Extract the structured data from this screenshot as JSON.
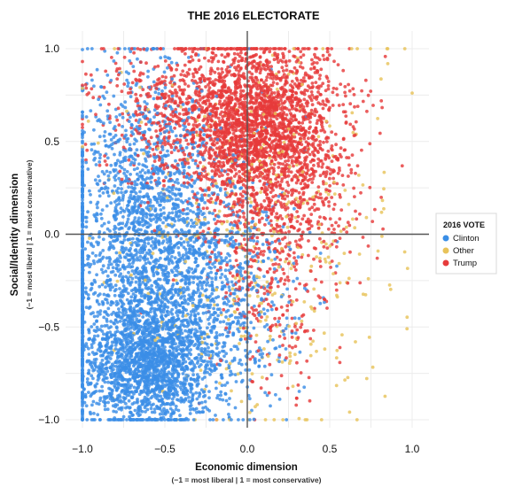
{
  "chart_data": {
    "type": "scatter",
    "title": "THE 2016 ELECTORATE",
    "xlabel": "Economic dimension",
    "xlabel_note": "(−1 = most liberal | 1 = most conservative)",
    "ylabel": "Social/Identity dimension",
    "ylabel_note": "(−1 = most liberal | 1 = most conservative)",
    "xlim": [
      -1.0,
      1.0
    ],
    "ylim": [
      -1.0,
      1.0
    ],
    "x_ticks": [
      -1.0,
      -0.5,
      0.0,
      0.5,
      1.0
    ],
    "x_tick_labels": [
      "−1.0",
      "−0.5",
      "0.0",
      "0.5",
      "1.0"
    ],
    "y_ticks": [
      -1.0,
      -0.5,
      0.0,
      0.5,
      1.0
    ],
    "y_tick_labels": [
      "−1.0",
      "−0.5",
      "0.0",
      "0.5",
      "1.0"
    ],
    "grid": true,
    "legend": {
      "title": "2016 VOTE",
      "placement": "right",
      "entries": [
        "Clinton",
        "Other",
        "Trump"
      ]
    },
    "colors": {
      "Clinton": "#3a8ee6",
      "Other": "#e8c35a",
      "Trump": "#e63b3b"
    },
    "series": [
      {
        "name": "Clinton",
        "clusters": [
          {
            "n": 1700,
            "cx": -0.62,
            "cy": -0.7,
            "sx": 0.2,
            "sy": 0.17
          },
          {
            "n": 1600,
            "cx": -0.58,
            "cy": -0.22,
            "sx": 0.27,
            "sy": 0.32
          },
          {
            "n": 750,
            "cx": -0.62,
            "cy": 0.3,
            "sx": 0.24,
            "sy": 0.34
          },
          {
            "n": 500,
            "cx": -0.15,
            "cy": -0.35,
            "sx": 0.22,
            "sy": 0.32
          }
        ],
        "edge_column": {
          "x": -1.0,
          "n": 230,
          "ymin": -1.0,
          "ymax": 0.45
        }
      },
      {
        "name": "Other",
        "clusters": [
          {
            "n": 420,
            "cx": 0.05,
            "cy": 0.0,
            "sx": 0.42,
            "sy": 0.55
          }
        ],
        "edge_column": null
      },
      {
        "name": "Trump",
        "clusters": [
          {
            "n": 1900,
            "cx": 0.05,
            "cy": 0.62,
            "sx": 0.24,
            "sy": 0.2
          },
          {
            "n": 800,
            "cx": 0.18,
            "cy": 0.3,
            "sx": 0.24,
            "sy": 0.28
          },
          {
            "n": 500,
            "cx": -0.42,
            "cy": 0.65,
            "sx": 0.3,
            "sy": 0.22
          },
          {
            "n": 250,
            "cx": 0.18,
            "cy": -0.25,
            "sx": 0.18,
            "sy": 0.3
          }
        ],
        "edge_column": null
      }
    ]
  }
}
